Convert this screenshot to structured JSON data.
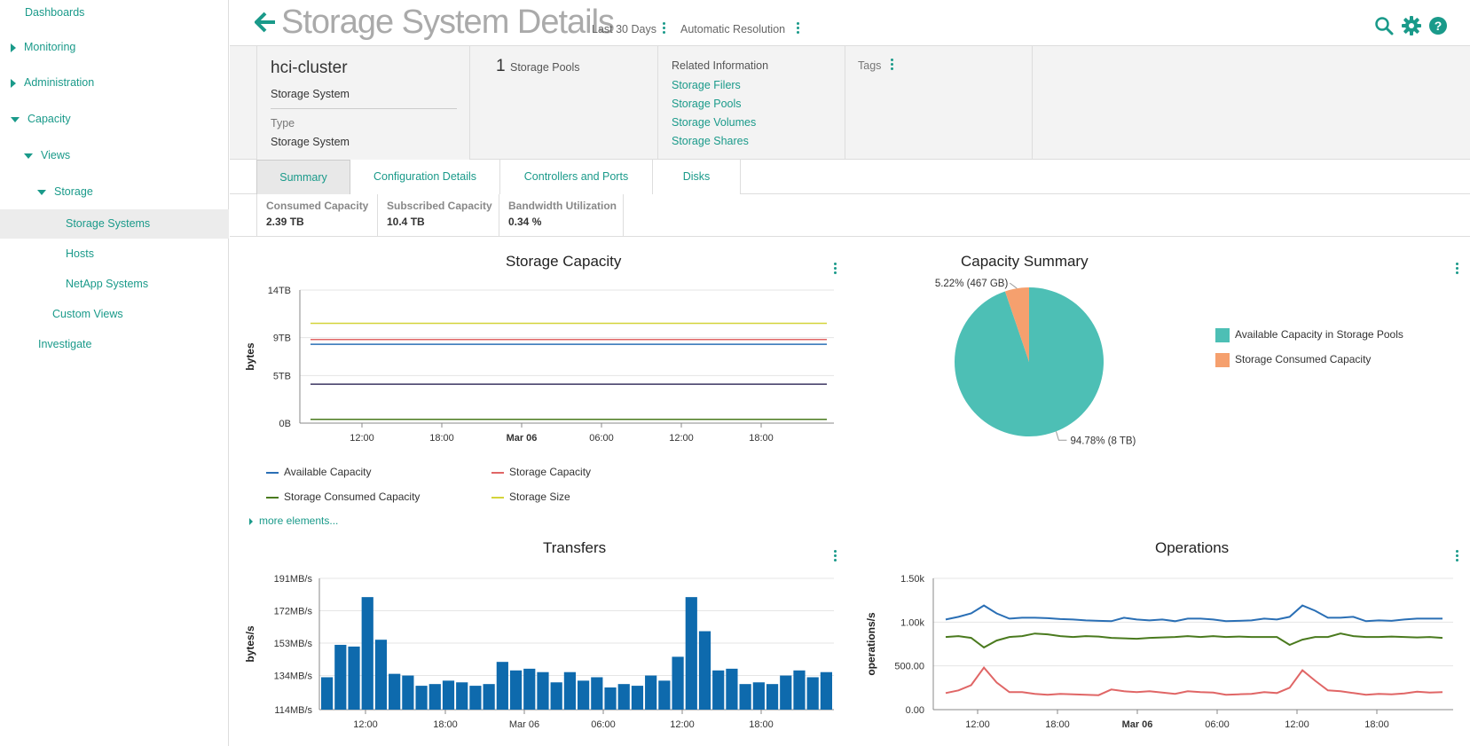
{
  "sidebar": {
    "items": [
      {
        "label": "Dashboards"
      },
      {
        "label": "Monitoring"
      },
      {
        "label": "Administration"
      },
      {
        "label": "Capacity"
      },
      {
        "label": "Views"
      },
      {
        "label": "Storage"
      },
      {
        "label": "Storage Systems"
      },
      {
        "label": "Hosts"
      },
      {
        "label": "NetApp Systems"
      },
      {
        "label": "Custom Views"
      },
      {
        "label": "Investigate"
      }
    ]
  },
  "header": {
    "title": "Storage System Details",
    "time_range": "Last 30 Days",
    "resolution": "Automatic Resolution"
  },
  "info": {
    "name": "hci-cluster",
    "subtitle": "Storage System",
    "type_label": "Type",
    "type_value": "Storage System",
    "pools_count": "1",
    "pools_label": "Storage Pools",
    "related_title": "Related Information",
    "related_links": [
      "Storage Filers",
      "Storage Pools",
      "Storage Volumes",
      "Storage Shares"
    ],
    "tags_label": "Tags"
  },
  "tabs": [
    {
      "label": "Summary"
    },
    {
      "label": "Configuration Details"
    },
    {
      "label": "Controllers and Ports"
    },
    {
      "label": "Disks"
    }
  ],
  "metrics": [
    {
      "label": "Consumed Capacity",
      "value": "2.39 TB"
    },
    {
      "label": "Subscribed Capacity",
      "value": "10.4 TB"
    },
    {
      "label": "Bandwidth Utilization",
      "value": "0.34 %"
    }
  ],
  "more_elements": "more elements...",
  "colors": {
    "accent": "#1a9a8a",
    "teal": "#4dbfb5",
    "orange": "#f5a06e",
    "blue": "#2a6fb5",
    "red": "#e06666",
    "green": "#4a7a1e",
    "yellow": "#d4d43a",
    "purple": "#3b3560",
    "bar": "#0e6aad"
  },
  "chart_data": [
    {
      "type": "line",
      "title": "Storage Capacity",
      "ylabel": "bytes",
      "y_ticks": [
        "14TB",
        "9TB",
        "5TB",
        "0B"
      ],
      "x_ticks": [
        "12:00",
        "18:00",
        "Mar 06",
        "06:00",
        "12:00",
        "18:00"
      ],
      "ylim": [
        0,
        14
      ],
      "series": [
        {
          "name": "Available Capacity",
          "value": 8.3
        },
        {
          "name": "Storage Capacity",
          "value": 8.8
        },
        {
          "name": "Storage Consumed Capacity",
          "value": 0.4
        },
        {
          "name": "Storage Size",
          "value": 10.5
        },
        {
          "value": 4.1
        }
      ]
    },
    {
      "type": "pie",
      "title": "Capacity Summary",
      "slices": [
        {
          "name": "Available Capacity in Storage Pools",
          "percent": 94.78,
          "label": "94.78% (8 TB)"
        },
        {
          "name": "Storage Consumed Capacity",
          "percent": 5.22,
          "label": "5.22% (467 GB)"
        }
      ]
    },
    {
      "type": "bar",
      "title": "Transfers",
      "ylabel": "bytes/s",
      "y_ticks": [
        "191MB/s",
        "172MB/s",
        "153MB/s",
        "134MB/s",
        "114MB/s"
      ],
      "x_ticks": [
        "12:00",
        "18:00",
        "Mar 06",
        "06:00",
        "12:00",
        "18:00"
      ],
      "ylim": [
        114,
        191
      ],
      "values": [
        133,
        152,
        151,
        180,
        155,
        135,
        134,
        128,
        129,
        131,
        130,
        128,
        129,
        142,
        137,
        138,
        136,
        130,
        136,
        131,
        133,
        127,
        129,
        128,
        134,
        131,
        145,
        180,
        160,
        137,
        138,
        129,
        130,
        129,
        134,
        137,
        133,
        136
      ]
    },
    {
      "type": "line",
      "title": "Operations",
      "ylabel": "operations/s",
      "y_ticks": [
        "1.50k",
        "1.00k",
        "500.00",
        "0.00"
      ],
      "x_ticks": [
        "12:00",
        "18:00",
        "Mar 06",
        "06:00",
        "12:00",
        "18:00"
      ],
      "ylim": [
        0,
        1500
      ],
      "series": [
        {
          "values": [
            1030,
            1060,
            1100,
            1190,
            1100,
            1040,
            1050,
            1050,
            1045,
            1035,
            1030,
            1020,
            1015,
            1010,
            1050,
            1030,
            1020,
            1030,
            1010,
            1040,
            1040,
            1030,
            1010,
            1015,
            1020,
            1040,
            1030,
            1060,
            1190,
            1130,
            1050,
            1050,
            1060,
            1010,
            1020,
            1015,
            1030,
            1040,
            1040,
            1040
          ]
        },
        {
          "values": [
            830,
            840,
            820,
            710,
            790,
            830,
            840,
            870,
            860,
            840,
            830,
            840,
            835,
            820,
            815,
            810,
            820,
            825,
            830,
            840,
            830,
            840,
            830,
            835,
            830,
            830,
            830,
            740,
            800,
            830,
            830,
            870,
            840,
            830,
            830,
            835,
            830,
            825,
            830,
            820
          ]
        },
        {
          "values": [
            190,
            220,
            280,
            480,
            310,
            200,
            200,
            180,
            170,
            180,
            175,
            170,
            165,
            230,
            210,
            200,
            210,
            195,
            180,
            210,
            200,
            195,
            170,
            175,
            180,
            200,
            190,
            250,
            450,
            330,
            220,
            210,
            190,
            170,
            180,
            175,
            185,
            205,
            195,
            200
          ]
        }
      ]
    }
  ]
}
